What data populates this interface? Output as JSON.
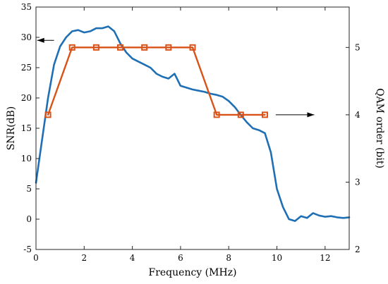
{
  "chart_data": {
    "type": "line",
    "title": "",
    "xlabel": "Frequency (MHz)",
    "ylabel_left": "SNR(dB)",
    "ylabel_right": "QAM order (bit)",
    "xlim": [
      0,
      13
    ],
    "ylim_left": [
      -5,
      35
    ],
    "ylim_right": [
      2,
      5.6
    ],
    "xticks": [
      0,
      2,
      4,
      6,
      8,
      10,
      12
    ],
    "yticks_left": [
      -5,
      0,
      5,
      10,
      15,
      20,
      25,
      30,
      35
    ],
    "yticks_right": [
      2,
      3,
      4,
      5
    ],
    "grid": false,
    "series": [
      {
        "axis": "left",
        "color": "#1f6fb5",
        "x": [
          0,
          0.25,
          0.5,
          0.75,
          1.0,
          1.25,
          1.5,
          1.75,
          2.0,
          2.25,
          2.5,
          2.75,
          3.0,
          3.25,
          3.5,
          3.75,
          4.0,
          4.25,
          4.5,
          4.75,
          5.0,
          5.25,
          5.5,
          5.75,
          6.0,
          6.25,
          6.5,
          6.75,
          7.0,
          7.25,
          7.5,
          7.75,
          8.0,
          8.25,
          8.5,
          8.75,
          9.0,
          9.25,
          9.5,
          9.75,
          10.0,
          10.25,
          10.5,
          10.75,
          11.0,
          11.25,
          11.5,
          11.75,
          12.0,
          12.25,
          12.5,
          12.75,
          13.0
        ],
        "y": [
          6,
          13,
          20,
          25.5,
          28.5,
          30,
          31,
          31.2,
          30.8,
          31,
          31.5,
          31.5,
          31.8,
          31,
          29,
          27.5,
          26.5,
          26,
          25.5,
          25,
          24,
          23.5,
          23.2,
          24,
          22,
          21.7,
          21.4,
          21.2,
          21,
          20.7,
          20.5,
          20.2,
          19.5,
          18.5,
          17.2,
          16,
          15,
          14.7,
          14.2,
          11,
          5,
          2,
          0,
          -0.3,
          0.5,
          0.2,
          1,
          0.6,
          0.4,
          0.5,
          0.3,
          0.2,
          0.3
        ]
      },
      {
        "axis": "right",
        "color": "#d95319",
        "marker": "square",
        "x": [
          0.5,
          1.5,
          2.5,
          3.5,
          4.5,
          5.5,
          6.5,
          7.5,
          8.5,
          9.5
        ],
        "y": [
          4,
          5,
          5,
          5,
          5,
          5,
          5,
          4,
          4,
          4
        ]
      }
    ],
    "annotations": [
      {
        "type": "arrow",
        "direction": "left",
        "axis": "left",
        "x_from": 0.75,
        "x_to": 0.05,
        "y": 29.5
      },
      {
        "type": "arrow",
        "direction": "right",
        "axis": "right",
        "x_from": 9.95,
        "x_to": 11.55,
        "y": 4
      }
    ]
  }
}
